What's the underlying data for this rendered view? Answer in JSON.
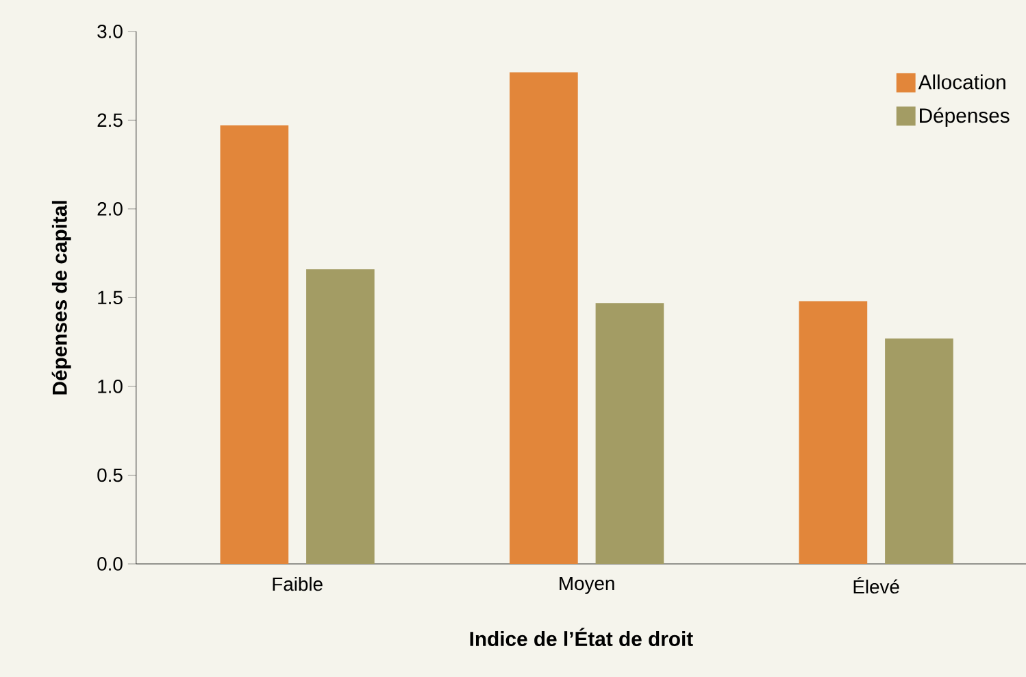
{
  "chart_data": {
    "type": "bar",
    "xlabel": "Indice de l’État de droit",
    "ylabel": "Dépenses de capital",
    "categories": [
      "Faible",
      "Moyen",
      "Élevé"
    ],
    "series": [
      {
        "name": "Allocation",
        "color": "#e2863a",
        "values": [
          2.47,
          2.77,
          1.48
        ]
      },
      {
        "name": "Dépenses",
        "color": "#a39c64",
        "values": [
          1.66,
          1.47,
          1.27
        ]
      }
    ],
    "ylim": [
      0,
      3.0
    ],
    "yticks": [
      {
        "value": 0,
        "label": "0.0"
      },
      {
        "value": 0.5,
        "label": "0.5"
      },
      {
        "value": 1,
        "label": "1.0"
      },
      {
        "value": 1.5,
        "label": "1.5"
      },
      {
        "value": 2,
        "label": "2.0"
      },
      {
        "value": 2.5,
        "label": "2.5"
      },
      {
        "value": 3,
        "label": "3.0"
      }
    ],
    "grid": false,
    "legend": "top right"
  }
}
